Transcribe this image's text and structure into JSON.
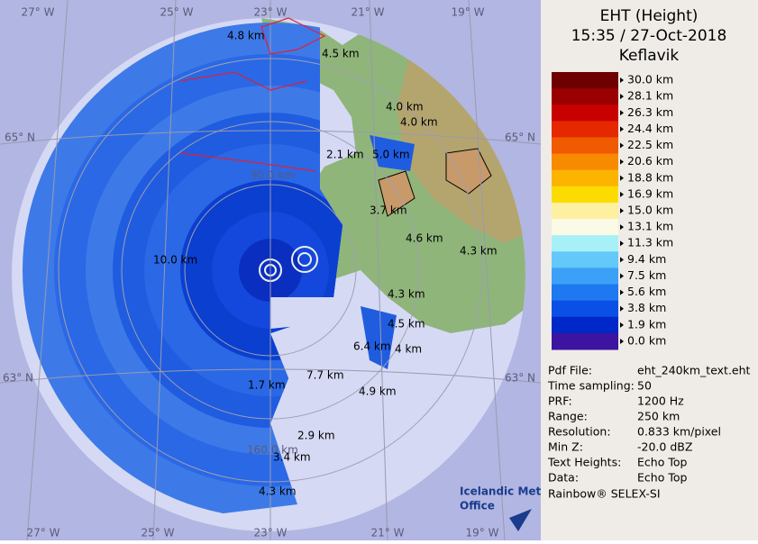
{
  "header": {
    "title": "EHT (Height)",
    "time": "15:35 / 27-Oct-2018",
    "site": "Keflavik"
  },
  "legend": {
    "items": [
      {
        "label": "30.0 km",
        "color": "#6e0000"
      },
      {
        "label": "28.1 km",
        "color": "#9a0000"
      },
      {
        "label": "26.3 km",
        "color": "#c80000"
      },
      {
        "label": "24.4 km",
        "color": "#e62800"
      },
      {
        "label": "22.5 km",
        "color": "#f05a00"
      },
      {
        "label": "20.6 km",
        "color": "#f88a00"
      },
      {
        "label": "18.8 km",
        "color": "#fcb400"
      },
      {
        "label": "16.9 km",
        "color": "#fcdc00"
      },
      {
        "label": "15.0 km",
        "color": "#fdf0a0"
      },
      {
        "label": "13.1 km",
        "color": "#fafae6"
      },
      {
        "label": "11.3 km",
        "color": "#a8f0f8"
      },
      {
        "label": "9.4 km",
        "color": "#64c8f8"
      },
      {
        "label": "7.5 km",
        "color": "#3ca0f8"
      },
      {
        "label": "5.6 km",
        "color": "#1e78f0"
      },
      {
        "label": "3.8 km",
        "color": "#0a50e6"
      },
      {
        "label": "1.9 km",
        "color": "#0028c8"
      },
      {
        "label": "0.0 km",
        "color": "#3c14a0"
      }
    ]
  },
  "info": {
    "rows": [
      [
        "Pdf File:",
        "eht_240km_text.eht"
      ],
      [
        "Time sampling:",
        "50"
      ],
      [
        "PRF:",
        "1200 Hz"
      ],
      [
        "Range:",
        "250 km"
      ],
      [
        "Resolution:",
        "0.833 km/pixel"
      ],
      [
        "Min Z:",
        "-20.0 dBZ"
      ],
      [
        "Text Heights:",
        "Echo Top"
      ],
      [
        "Data:",
        "Echo Top"
      ]
    ],
    "footer": "Rainbow® SELEX-SI"
  },
  "map": {
    "grid_labels": [
      "27° W",
      "25° W",
      "23° W",
      "21° W",
      "19° W",
      "27° W",
      "25° W",
      "23° W",
      "21° W",
      "19° W",
      "65° N",
      "65° N",
      "63° N",
      "63° N"
    ],
    "ring_labels": [
      "90.0 km",
      "160.0 km"
    ],
    "echo_labels": [
      "4.8 km",
      "4.5 km",
      "4.0 km",
      "4.0 km",
      "2.1 km",
      "5.0 km",
      "3.7 km",
      "4.6 km",
      "4.3 km",
      "10.0 km",
      "4.3 km",
      "4.5 km",
      "6.4 km",
      "4 km",
      "7.7 km",
      "1.7 km",
      "4.9 km",
      "2.9 km",
      "3.4 km",
      "4.3 km"
    ],
    "logo": [
      "Icelandic Met",
      "Office"
    ]
  }
}
